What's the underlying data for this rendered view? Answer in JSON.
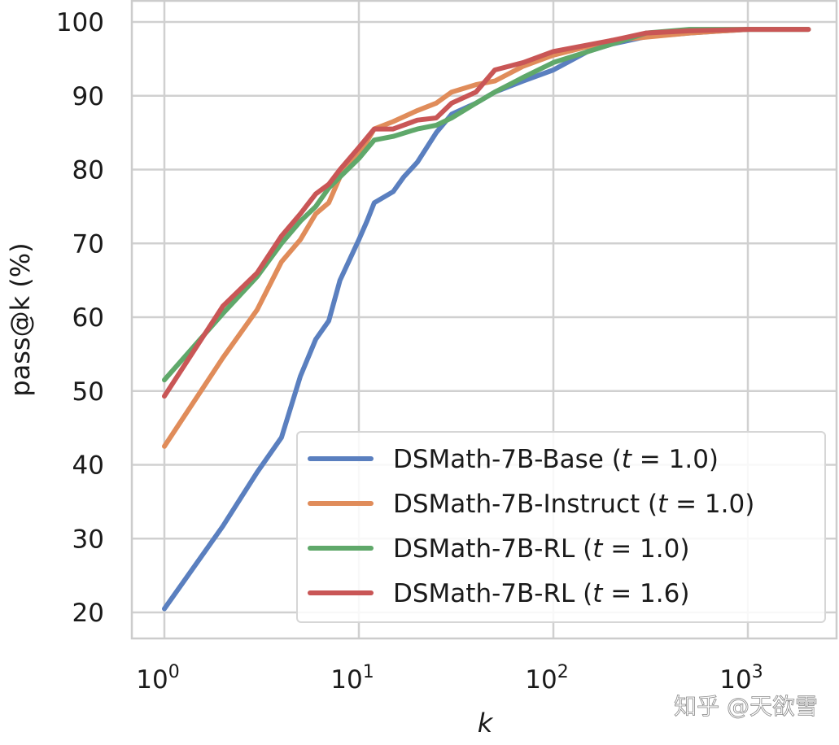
{
  "chart_data": {
    "type": "line",
    "title": "",
    "xlabel": "k",
    "ylabel": "pass@k (%)",
    "xscale": "log",
    "xlim": [
      0.85,
      2400
    ],
    "ylim": [
      16,
      103
    ],
    "xticks": [
      {
        "value": 1,
        "base": "10",
        "exp": "0"
      },
      {
        "value": 10,
        "base": "10",
        "exp": "1"
      },
      {
        "value": 100,
        "base": "10",
        "exp": "2"
      },
      {
        "value": 1000,
        "base": "10",
        "exp": "3"
      }
    ],
    "yticks": [
      20,
      30,
      40,
      50,
      60,
      70,
      80,
      90,
      100
    ],
    "grid": true,
    "legend_position": "lower-right",
    "series": [
      {
        "name": "DSMath-7B-Base (t = 1.0)",
        "name_prefix": "DSMath-7B-Base (",
        "var": "t",
        "value": "= 1.0)",
        "color": "#5a7fbf",
        "x": [
          1,
          2,
          3,
          4,
          5,
          6,
          7,
          8,
          10,
          11,
          12,
          15,
          17,
          20,
          25,
          30,
          40,
          50,
          70,
          100,
          150,
          200,
          300,
          500,
          1000,
          2048
        ],
        "y": [
          20.5,
          31.7,
          39,
          43.7,
          52,
          57,
          59.5,
          65,
          70.5,
          73,
          75.5,
          77,
          79,
          81,
          85,
          87.5,
          89,
          90.5,
          92,
          93.5,
          96,
          97,
          98,
          98.5,
          99,
          99
        ]
      },
      {
        "name": "DSMath-7B-Instruct (t = 1.0)",
        "name_prefix": "DSMath-7B-Instruct (",
        "var": "t",
        "value": "= 1.0)",
        "color": "#e08c5a",
        "x": [
          1,
          2,
          3,
          4,
          5,
          6,
          7,
          8,
          10,
          12,
          15,
          20,
          25,
          30,
          40,
          50,
          70,
          100,
          200,
          500,
          1000,
          2048
        ],
        "y": [
          42.5,
          54.5,
          61,
          67.5,
          70.5,
          74,
          75.5,
          79,
          82,
          85.5,
          86.5,
          88,
          89,
          90.5,
          91.5,
          92,
          94,
          95.5,
          97.5,
          98.5,
          99,
          99
        ]
      },
      {
        "name": "DSMath-7B-RL (t = 1.0)",
        "name_prefix": "DSMath-7B-RL (",
        "var": "t",
        "value": "= 1.0)",
        "color": "#5fa86a",
        "x": [
          1,
          2,
          3,
          4,
          5,
          6,
          7,
          8,
          10,
          12,
          15,
          20,
          25,
          30,
          40,
          50,
          70,
          100,
          200,
          300,
          500,
          1000,
          2048
        ],
        "y": [
          51.5,
          60.5,
          65.5,
          70,
          73,
          75,
          77.5,
          79,
          81.5,
          84,
          84.5,
          85.5,
          86,
          87,
          89,
          90.5,
          92.5,
          94.5,
          97,
          98.5,
          99,
          99,
          99
        ]
      },
      {
        "name": "DSMath-7B-RL (t = 1.6)",
        "name_prefix": "DSMath-7B-RL (",
        "var": "t",
        "value": "= 1.6)",
        "color": "#c95656",
        "x": [
          1,
          2,
          3,
          4,
          5,
          6,
          7,
          8,
          10,
          12,
          15,
          20,
          25,
          30,
          40,
          50,
          70,
          100,
          200,
          300,
          500,
          1000,
          2048
        ],
        "y": [
          49.3,
          61.5,
          66,
          71,
          74,
          76.7,
          78,
          80,
          83,
          85.5,
          85.5,
          86.7,
          87,
          89,
          90.5,
          93.5,
          94.5,
          96,
          97.5,
          98.5,
          98.8,
          99,
          99
        ]
      }
    ]
  },
  "watermark": "知乎 @天欲雪"
}
